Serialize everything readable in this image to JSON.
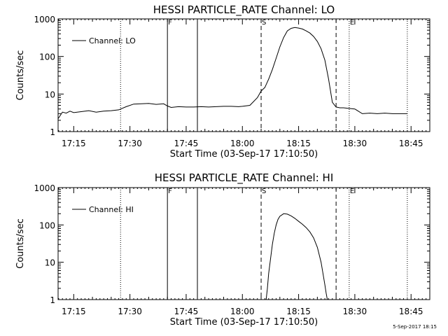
{
  "footer_date": "5-Sep-2017 18:15",
  "chart_data": [
    {
      "type": "line",
      "title": "HESSI PARTICLE_RATE Channel: LO",
      "xlabel": "Start Time (03-Sep-17 17:10:50)",
      "ylabel": "Counts/sec",
      "yscale": "log",
      "xlim": [
        "17:10:50",
        "18:50:00"
      ],
      "ylim": [
        1,
        1000
      ],
      "x_tick_labels": [
        "17:15",
        "17:30",
        "17:45",
        "18:00",
        "18:15",
        "18:30",
        "18:45"
      ],
      "y_tick_labels": [
        "1",
        "10",
        "100",
        "1000"
      ],
      "legend": {
        "position": "top-left",
        "entry": "Channel: LO"
      },
      "markers": [
        {
          "time": "17:27:30",
          "style": "dotted",
          "label": ""
        },
        {
          "time": "17:40:00",
          "style": "solid",
          "label": "F"
        },
        {
          "time": "17:48:00",
          "style": "solid",
          "label": ""
        },
        {
          "time": "18:05:00",
          "style": "dashed",
          "label": "S"
        },
        {
          "time": "18:25:00",
          "style": "dashed",
          "label": ""
        },
        {
          "time": "18:28:30",
          "style": "dotted",
          "label": "E"
        },
        {
          "time": "18:44:00",
          "style": "dotted",
          "label": ""
        }
      ],
      "series": [
        {
          "name": "Channel: LO",
          "x": [
            "17:10:50",
            "17:12:00",
            "17:13:00",
            "17:14:00",
            "17:15:00",
            "17:17:00",
            "17:19:00",
            "17:21:00",
            "17:23:00",
            "17:25:00",
            "17:27:00",
            "17:29:00",
            "17:31:00",
            "17:33:00",
            "17:35:00",
            "17:37:00",
            "17:39:00",
            "17:40:00",
            "17:41:00",
            "17:43:00",
            "17:45:00",
            "17:47:00",
            "17:49:00",
            "17:51:00",
            "17:53:00",
            "17:55:00",
            "17:57:00",
            "17:59:00",
            "18:00:00",
            "18:02:00",
            "18:04:00",
            "18:05:00",
            "18:06:00",
            "18:07:00",
            "18:08:00",
            "18:09:00",
            "18:10:00",
            "18:11:00",
            "18:12:00",
            "18:13:00",
            "18:14:00",
            "18:15:00",
            "18:16:00",
            "18:17:00",
            "18:18:00",
            "18:19:00",
            "18:20:00",
            "18:21:00",
            "18:22:00",
            "18:23:00",
            "18:24:00",
            "18:25:00",
            "18:26:00",
            "18:27:00",
            "18:28:00",
            "18:30:00",
            "18:32:00",
            "18:34:00",
            "18:36:00",
            "18:38:00",
            "18:40:00",
            "18:42:00",
            "18:44:00"
          ],
          "y": [
            2.2,
            3.3,
            3.1,
            3.5,
            3.2,
            3.4,
            3.6,
            3.3,
            3.5,
            3.6,
            3.8,
            4.6,
            5.4,
            5.5,
            5.6,
            5.3,
            5.5,
            4.8,
            4.4,
            4.6,
            4.5,
            4.5,
            4.6,
            4.5,
            4.6,
            4.7,
            4.7,
            4.6,
            4.7,
            5,
            8,
            12,
            15,
            25,
            45,
            90,
            180,
            320,
            480,
            560,
            590,
            570,
            540,
            480,
            420,
            340,
            250,
            160,
            80,
            25,
            6,
            4.5,
            4.3,
            4.3,
            4.2,
            4,
            3,
            3.1,
            3,
            3.1,
            3,
            3,
            3
          ]
        }
      ]
    },
    {
      "type": "line",
      "title": "HESSI PARTICLE_RATE Channel: HI",
      "xlabel": "Start Time (03-Sep-17 17:10:50)",
      "ylabel": "Counts/sec",
      "yscale": "log",
      "xlim": [
        "17:10:50",
        "18:50:00"
      ],
      "ylim": [
        1,
        1000
      ],
      "x_tick_labels": [
        "17:15",
        "17:30",
        "17:45",
        "18:00",
        "18:15",
        "18:30",
        "18:45"
      ],
      "y_tick_labels": [
        "1",
        "10",
        "100",
        "1000"
      ],
      "legend": {
        "position": "top-left",
        "entry": "Channel: HI"
      },
      "markers": [
        {
          "time": "17:27:30",
          "style": "dotted",
          "label": ""
        },
        {
          "time": "17:40:00",
          "style": "solid",
          "label": "F"
        },
        {
          "time": "17:48:00",
          "style": "solid",
          "label": ""
        },
        {
          "time": "18:05:00",
          "style": "dashed",
          "label": "S"
        },
        {
          "time": "18:25:00",
          "style": "dashed",
          "label": ""
        },
        {
          "time": "18:28:30",
          "style": "dotted",
          "label": "E"
        },
        {
          "time": "18:44:00",
          "style": "dotted",
          "label": ""
        }
      ],
      "series": [
        {
          "name": "Channel: HI",
          "x": [
            "18:06:20",
            "18:06:40",
            "18:07:00",
            "18:07:30",
            "18:08:00",
            "18:08:30",
            "18:09:00",
            "18:09:30",
            "18:10:00",
            "18:11:00",
            "18:12:00",
            "18:13:00",
            "18:14:00",
            "18:15:00",
            "18:16:00",
            "18:17:00",
            "18:18:00",
            "18:19:00",
            "18:20:00",
            "18:21:00",
            "18:21:30",
            "18:22:00",
            "18:22:20",
            "18:22:40"
          ],
          "y": [
            1,
            2,
            5,
            12,
            30,
            60,
            100,
            140,
            170,
            200,
            195,
            175,
            150,
            125,
            105,
            85,
            65,
            45,
            25,
            10,
            5,
            2.5,
            1.5,
            1
          ]
        }
      ]
    }
  ]
}
